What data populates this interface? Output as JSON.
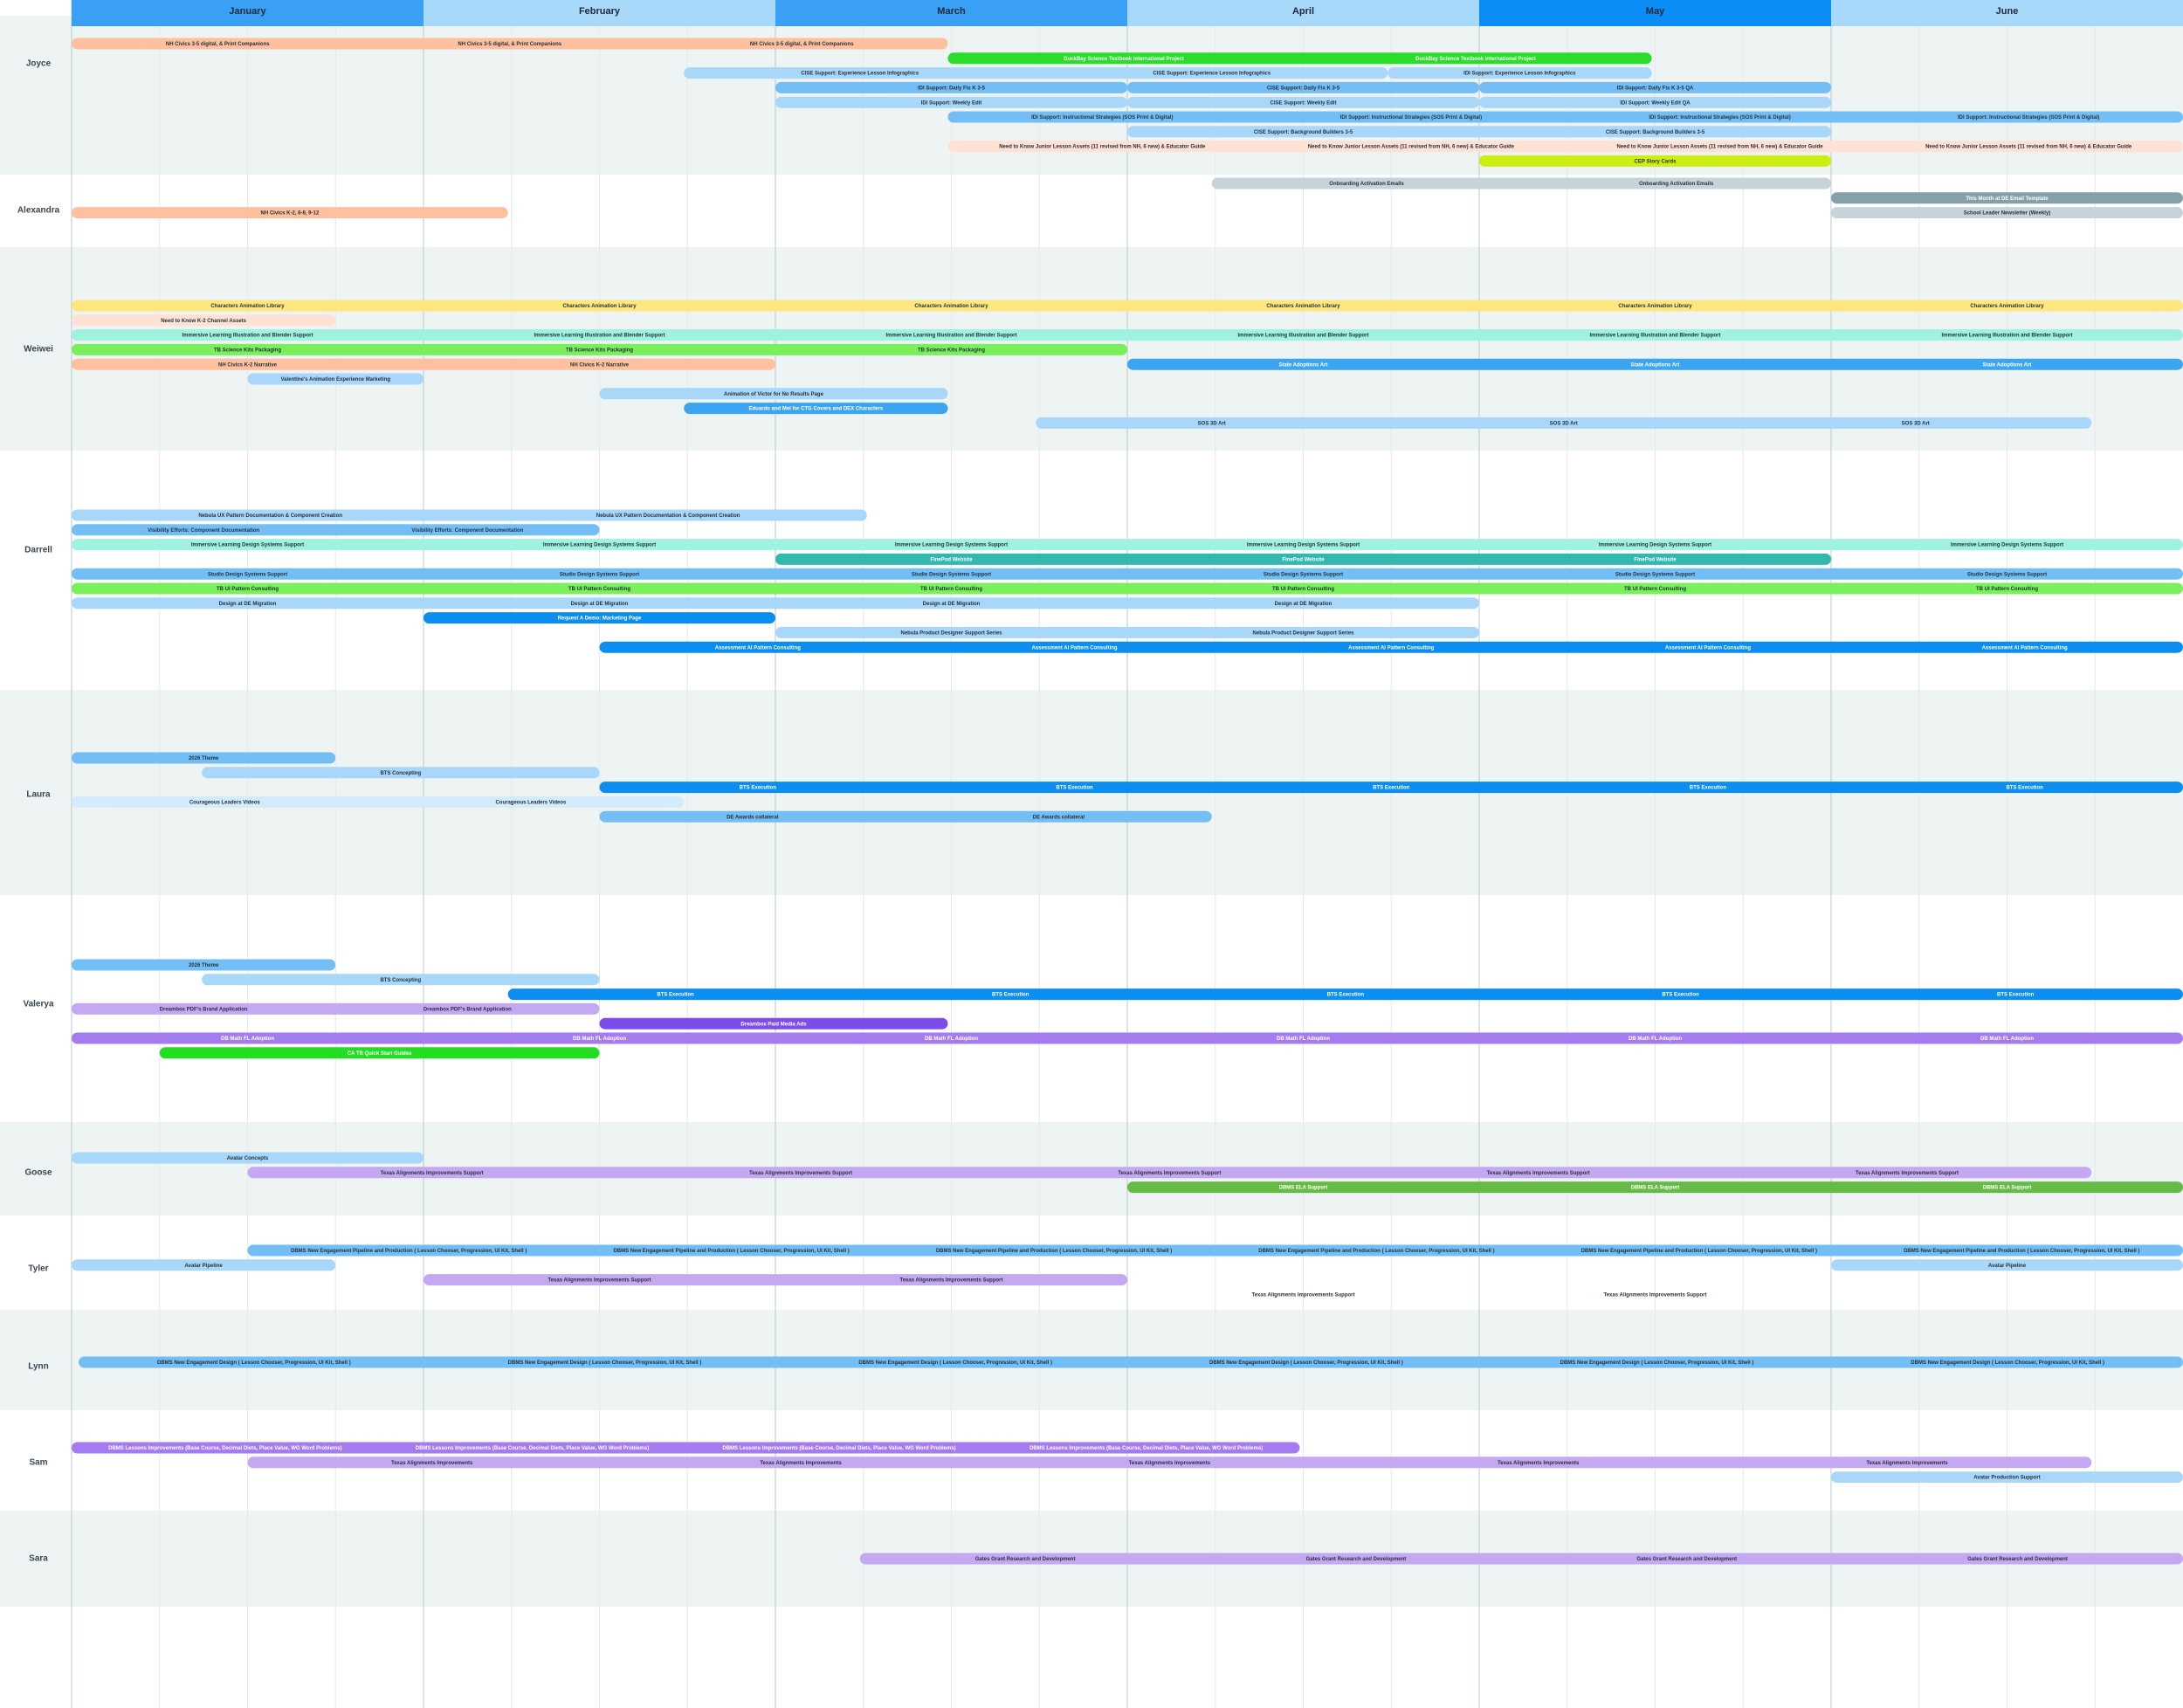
{
  "chart_data": {
    "type": "gantt",
    "categories": [
      "January",
      "February",
      "March",
      "April",
      "May",
      "June"
    ],
    "month_colors": [
      "#3aa0f5",
      "#a8d8fa",
      "#3aa0f5",
      "#a8d8fa",
      "#0a8ef5",
      "#a8d8fa"
    ],
    "xlim": [
      0,
      6
    ],
    "rows": [
      {
        "name": "Joyce",
        "lanes": [
          [
            {
              "label": "NH Civics 3-5 digital, & Print Companions",
              "start": 0,
              "end": 2.49,
              "color": "#ffc09f"
            }
          ],
          [
            {
              "label": "DuckBay Science Textbook International Project",
              "start": 2.49,
              "end": 4.49,
              "color": "#2bdd2b"
            }
          ],
          [
            {
              "label": "CISE Support: Experience Lesson Infographics",
              "start": 1.74,
              "end": 3.74,
              "color": "#a9d7fa"
            },
            {
              "label": "IDI Support: Experience Lesson Infographics",
              "start": 3.74,
              "end": 4.49,
              "color": "#a9d7fa"
            }
          ],
          [
            {
              "label": "IDI Support: Daily Fix K 3-5",
              "start": 2,
              "end": 3,
              "color": "#73bff5"
            },
            {
              "label": "CISE Support: Daily Fix K 3-5",
              "start": 3,
              "end": 4,
              "color": "#73bff5"
            },
            {
              "label": "IDI Support: Daily Fix K 3-5 QA",
              "start": 4,
              "end": 5,
              "color": "#73bff5"
            }
          ],
          [
            {
              "label": "IDI Support: Weekly Edit",
              "start": 2,
              "end": 3,
              "color": "#a9d7fa"
            },
            {
              "label": "CISE Support: Weekly Edit",
              "start": 3,
              "end": 4,
              "color": "#a9d7fa"
            },
            {
              "label": "IDI Support: Weekly Edit QA",
              "start": 4,
              "end": 5,
              "color": "#a9d7fa"
            }
          ],
          [
            {
              "label": "IDI Support: Instructional Strategies (SOS Print & Digital)",
              "start": 2.49,
              "end": 6,
              "color": "#73bff5"
            }
          ],
          [
            {
              "label": "CISE Support: Background Builders 3-5",
              "start": 3,
              "end": 5,
              "color": "#a9d7fa"
            }
          ],
          [
            {
              "label": "Need to Know Junior Lesson Assets (11 revised from NH, 6 new) & Educator Guide",
              "start": 2.49,
              "end": 6,
              "color": "#ffe2d4"
            }
          ],
          [
            {
              "label": "CEP Story Cards",
              "start": 4,
              "end": 5,
              "color": "#cdee10"
            }
          ]
        ]
      },
      {
        "name": "Alexandra",
        "lanes": [
          [
            {
              "label": "Onboarding Activation Emails",
              "start": 3.24,
              "end": 5,
              "color": "#c6d3d9"
            }
          ],
          [
            {
              "label": "This Month at DE Email Template",
              "start": 5,
              "end": 6,
              "color": "#84a0a9"
            }
          ],
          [
            {
              "label": "NH Civics K-2, 6-8, 9-12",
              "start": 0,
              "end": 1.24,
              "color": "#ffc09f"
            },
            {
              "label": "School Leader Newsletter (Weekly)",
              "start": 5,
              "end": 6,
              "color": "#c6d3d9"
            }
          ]
        ]
      },
      {
        "name": "Weiwei",
        "lanes": [
          [
            {
              "label": "Characters Animation Library",
              "start": 0,
              "end": 6,
              "color": "#ffe780"
            }
          ],
          [
            {
              "label": "Need to Know K-2 Channel Assets",
              "start": 0,
              "end": 0.75,
              "color": "#ffe2d4"
            }
          ],
          [
            {
              "label": "Immersive Learning Illustration and Blender Support",
              "start": 0,
              "end": 6,
              "color": "#9ff2dd"
            }
          ],
          [
            {
              "label": "TB Science Kits Packaging",
              "start": 0,
              "end": 3,
              "color": "#7aef5c"
            }
          ],
          [
            {
              "label": "NH Civics K-2 Narrative",
              "start": 0,
              "end": 2,
              "color": "#ffc09f"
            },
            {
              "label": "State Adoptions Art",
              "start": 3,
              "end": 6,
              "color": "#3ba5f2"
            }
          ],
          [
            {
              "label": "Valentine's Animation Experience Marketing",
              "start": 0.5,
              "end": 1,
              "color": "#a9d7fa"
            }
          ],
          [
            {
              "label": "Animation of Victor for No Results Page",
              "start": 1.5,
              "end": 2.49,
              "color": "#a9d7fa"
            }
          ],
          [
            {
              "label": "Eduardo and Mel for CTG Covers and DEX Characters",
              "start": 1.74,
              "end": 2.49,
              "color": "#3ba5f2"
            }
          ],
          [
            {
              "label": "SOS 3D Art",
              "start": 2.74,
              "end": 5.74,
              "color": "#a9d7fa"
            }
          ]
        ]
      },
      {
        "name": "Darrell",
        "lanes": [
          [
            {
              "label": "Nebula UX Pattern Documentation & Component Creation",
              "start": 0,
              "end": 2.26,
              "color": "#a9d7fa"
            }
          ],
          [
            {
              "label": "Visibility Efforts: Component Documentation",
              "start": 0,
              "end": 1.5,
              "color": "#73bff5"
            }
          ],
          [
            {
              "label": "Immersive Learning Design Systems Support",
              "start": 0,
              "end": 6,
              "color": "#9ff2dd"
            }
          ],
          [
            {
              "label": "FinePod Website",
              "start": 2,
              "end": 5,
              "color": "#33b8b0"
            }
          ],
          [
            {
              "label": "Studio Design Systems Support",
              "start": 0,
              "end": 6,
              "color": "#73bff5"
            }
          ],
          [
            {
              "label": "TB UI Pattern Consulting",
              "start": 0,
              "end": 6,
              "color": "#7aef5c"
            }
          ],
          [
            {
              "label": "Design at DE Migration",
              "start": 0,
              "end": 4,
              "color": "#a9d7fa"
            }
          ],
          [
            {
              "label": "Request A Demo: Marketing Page",
              "start": 1,
              "end": 2,
              "color": "#0b8ef0"
            }
          ],
          [
            {
              "label": "Nebula Product Designer Support Series",
              "start": 2,
              "end": 4,
              "color": "#a9d7fa"
            }
          ],
          [
            {
              "label": "Assessment AI Pattern Consulting",
              "start": 1.5,
              "end": 6,
              "color": "#0b8ef0"
            }
          ]
        ]
      },
      {
        "name": "Laura",
        "lanes": [
          [
            {
              "label": "2026 Theme",
              "start": 0,
              "end": 0.75,
              "color": "#73bff5"
            }
          ],
          [
            {
              "label": "BTS Concepting",
              "start": 0.37,
              "end": 1.5,
              "color": "#a9d7fa"
            }
          ],
          [
            {
              "label": "BTS Execution",
              "start": 1.5,
              "end": 6,
              "color": "#0b8ef0"
            }
          ],
          [
            {
              "label": "Courageous Leaders Videos",
              "start": 0,
              "end": 1.74,
              "color": "#d4ebfb"
            }
          ],
          [
            {
              "label": "DE Awards collateral",
              "start": 1.5,
              "end": 3.24,
              "color": "#73bff5"
            }
          ]
        ]
      },
      {
        "name": "Valerya",
        "lanes": [
          [
            {
              "label": "2026 Theme",
              "start": 0,
              "end": 0.75,
              "color": "#73bff5"
            }
          ],
          [
            {
              "label": "BTS Concepting",
              "start": 0.37,
              "end": 1.5,
              "color": "#a9d7fa"
            }
          ],
          [
            {
              "label": "BTS Execution",
              "start": 1.24,
              "end": 6,
              "color": "#0b8ef0"
            }
          ],
          [
            {
              "label": "Dreambox PDF's Brand Application",
              "start": 0,
              "end": 1.5,
              "color": "#c4a9f2"
            }
          ],
          [
            {
              "label": "Dreambox Paid Media Ads",
              "start": 1.5,
              "end": 2.49,
              "color": "#7e4ceb"
            }
          ],
          [
            {
              "label": "DB Math FL Adoption",
              "start": 0,
              "end": 6,
              "color": "#a47cef"
            }
          ],
          [
            {
              "label": "CA TB Quick Start Guides",
              "start": 0.25,
              "end": 1.5,
              "color": "#22dd22"
            }
          ]
        ]
      },
      {
        "name": "Goose",
        "lanes": [
          [
            {
              "label": "Avatar Concepts",
              "start": 0,
              "end": 1,
              "color": "#a9d7fa"
            }
          ],
          [
            {
              "label": "Texas Alignments Improvements Support",
              "start": 0.5,
              "end": 5.74,
              "color": "#c4a9f2"
            }
          ],
          [
            {
              "label": "DBMS ELA Support",
              "start": 3,
              "end": 6,
              "color": "#66bb47"
            }
          ]
        ]
      },
      {
        "name": "Tyler",
        "lanes": [
          [
            {
              "label": "DBMS New Engagement Pipeline and Production ( Lesson Chooser, Progression, UI Kit, Shell )",
              "start": 0.5,
              "end": 6,
              "color": "#73bff5"
            }
          ],
          [
            {
              "label": "Avatar Pipeline",
              "start": 0,
              "end": 0.75,
              "color": "#a9d7fa"
            },
            {
              "label": "Avatar Pipeline",
              "start": 5,
              "end": 6,
              "color": "#a9d7fa"
            }
          ],
          [
            {
              "label": "Texas Alignments Improvements Support",
              "start": 1,
              "end": 3,
              "color": "#c4a9f2"
            }
          ],
          [
            {
              "label": "Texas Alignments Improvements Support",
              "start": 3,
              "end": 5,
              "color": "transparent"
            }
          ]
        ]
      },
      {
        "name": "Lynn",
        "lanes": [
          [
            {
              "label": "DBMS New Engagement  Design ( Lesson Chooser, Progression, UI Kit, Shell )",
              "start": 0.02,
              "end": 6,
              "color": "#73bff5"
            }
          ]
        ]
      },
      {
        "name": "Sam",
        "lanes": [
          [
            {
              "label": "DBMS Lessons Improvements (Base Course, Decimal Diets, Place Value, WG Word Problems)",
              "start": 0,
              "end": 3.49,
              "color": "#a47cef"
            }
          ],
          [
            {
              "label": "Texas Alignments Improvements",
              "start": 0.5,
              "end": 5.74,
              "color": "#c4a9f2"
            }
          ],
          [
            {
              "label": "Avatar Production Support",
              "start": 5,
              "end": 6,
              "color": "#a9d7fa"
            }
          ]
        ]
      },
      {
        "name": "Sara",
        "lanes": [
          [
            {
              "label": "Gates Grant Research and Development",
              "start": 2.24,
              "end": 6,
              "color": "#c4a9f2"
            }
          ]
        ]
      }
    ]
  }
}
